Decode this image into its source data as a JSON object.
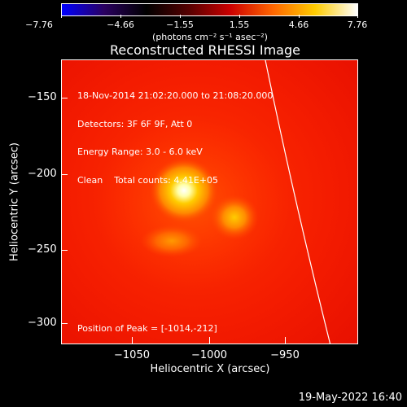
{
  "colorbar": {
    "tick_labels": [
      "−7.76",
      "−4.66",
      "−1.55",
      "1.55",
      "4.66",
      "7.76"
    ],
    "unit_label": "(photons cm⁻² s⁻¹ asec⁻²)",
    "colors": [
      "#0000ff",
      "#2a0060",
      "#000000",
      "#550000",
      "#cc0000",
      "#ff6600",
      "#ffcc00",
      "#ffffff"
    ]
  },
  "title": "Reconstructed RHESSI Image",
  "info": {
    "line1": "18-Nov-2014 21:02:20.000 to 21:08:20.000",
    "line2": "Detectors: 3F 6F 9F, Att 0",
    "line3": "Energy Range: 3.0 - 6.0 keV",
    "line4": "Clean    Total counts: 4.41E+05",
    "peak": "Position of Peak = [-1014,-212]"
  },
  "axes": {
    "xlabel": "Heliocentric X (arcsec)",
    "ylabel": "Heliocentric Y (arcsec)",
    "xticks": [
      "−1050",
      "−1000",
      "−950"
    ],
    "yticks": [
      "−150",
      "−200",
      "−250",
      "−300"
    ],
    "x_values": [
      -1050,
      -1000,
      -950
    ],
    "y_values": [
      -150,
      -200,
      -250,
      -300
    ],
    "xlim": [
      -1100,
      -920
    ],
    "ylim": [
      -315,
      -142
    ]
  },
  "sources": [
    {
      "name": "main",
      "x": -1014,
      "y": -212,
      "intensity": "peak"
    },
    {
      "name": "secondary",
      "x": -981,
      "y": -227,
      "intensity": "medium"
    },
    {
      "name": "tertiary",
      "x": -1022,
      "y": -243,
      "intensity": "low"
    }
  ],
  "timestamp": "19-May-2022 16:40"
}
